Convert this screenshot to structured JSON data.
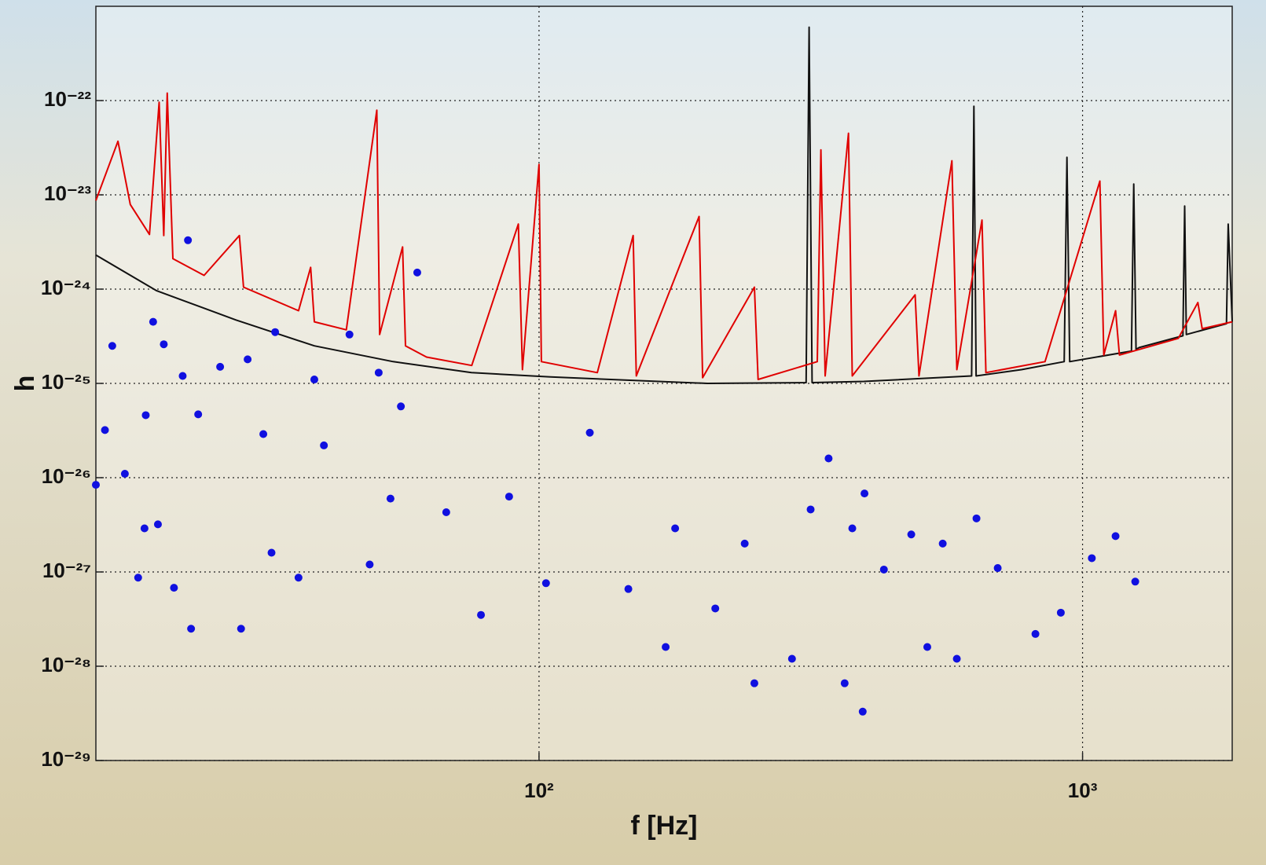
{
  "chart_data": {
    "type": "line",
    "xlabel": "f [Hz]",
    "ylabel": "h",
    "xscale": "log",
    "yscale": "log",
    "grid": true,
    "xlim": [
      15.3,
      1885
    ],
    "ylim": [
      1e-29,
      1e-21
    ],
    "xticks": [
      {
        "value": 100,
        "label": "10²"
      },
      {
        "value": 1000,
        "label": "10³"
      }
    ],
    "yticks": [
      {
        "value": 1e-29,
        "label": "10⁻²⁹"
      },
      {
        "value": 1e-28,
        "label": "10⁻²⁸"
      },
      {
        "value": 1e-27,
        "label": "10⁻²⁷"
      },
      {
        "value": 1e-26,
        "label": "10⁻²⁶"
      },
      {
        "value": 1e-25,
        "label": "10⁻²⁵"
      },
      {
        "value": 1e-24,
        "label": "10⁻²⁴"
      },
      {
        "value": 1e-23,
        "label": "10⁻²³"
      },
      {
        "value": 1e-22,
        "label": "10⁻²²"
      }
    ],
    "series": [
      {
        "type": "line",
        "color": "#111111",
        "x": [
          15.3,
          19.8,
          27.7,
          38.6,
          53.9,
          75.1,
          105,
          204,
          310,
          314,
          318,
          396,
          625,
          631,
          637,
          772,
          925,
          936,
          947,
          1230,
          1242,
          1254,
          1271,
          1530,
          1541,
          1552,
          1840,
          1853,
          1885
        ],
        "values": [
          2.3e-24,
          9.6e-25,
          4.7e-25,
          2.5e-25,
          1.7e-25,
          1.3e-25,
          1.17e-25,
          1e-25,
          1.02e-25,
          6e-22,
          1.02e-25,
          1.05e-25,
          1.2e-25,
          8.7e-23,
          1.2e-25,
          1.4e-25,
          1.7e-25,
          2.5e-23,
          1.7e-25,
          2.2e-25,
          1.3e-23,
          2.3e-25,
          2.4e-25,
          3.2e-25,
          7.6e-24,
          3.3e-25,
          4.3e-25,
          4.9e-24,
          4.5e-25
        ]
      },
      {
        "type": "line",
        "color": "#e00000",
        "x": [
          15.3,
          16.8,
          17.7,
          19.2,
          20.0,
          20.4,
          20.7,
          21.2,
          24.2,
          28.1,
          28.6,
          36.1,
          38.0,
          38.6,
          44.2,
          50.3,
          50.9,
          56.1,
          56.8,
          62.1,
          75.2,
          91.6,
          93.2,
          100,
          101,
          128,
          149,
          151,
          197,
          200,
          249,
          253,
          325,
          330,
          336,
          371,
          377,
          492,
          500,
          575,
          587,
          653,
          664,
          853,
          1076,
          1094,
          1150,
          1169,
          1500,
          1630,
          1660,
          1885
        ],
        "values": [
          8.7e-24,
          3.7e-23,
          7.9e-24,
          3.8e-24,
          9.6e-23,
          3.7e-24,
          1.2e-22,
          2.1e-24,
          1.4e-24,
          3.7e-24,
          1.05e-24,
          5.9e-25,
          1.7e-24,
          4.5e-25,
          3.7e-25,
          7.9e-23,
          3.3e-25,
          2.8e-24,
          2.5e-25,
          1.9e-25,
          1.55e-25,
          4.9e-24,
          1.4e-25,
          2.1e-23,
          1.7e-25,
          1.3e-25,
          3.7e-24,
          1.2e-25,
          5.9e-24,
          1.15e-25,
          1.05e-24,
          1.1e-25,
          1.7e-25,
          3e-23,
          1.2e-25,
          4.5e-23,
          1.2e-25,
          8.7e-25,
          1.2e-25,
          2.3e-23,
          1.4e-25,
          5.4e-24,
          1.3e-25,
          1.7e-25,
          1.4e-23,
          2e-25,
          5.9e-25,
          2e-25,
          3e-25,
          7.2e-25,
          3.8e-25,
          4.5e-25
        ]
      },
      {
        "type": "scatter",
        "color": "#1010e0",
        "x": [
          15.3,
          15.9,
          16.4,
          17.3,
          18.3,
          18.8,
          18.9,
          19.5,
          19.9,
          20.4,
          21.3,
          22.1,
          22.6,
          22.9,
          23.6,
          25.9,
          28.3,
          29.1,
          31.1,
          32.2,
          32.7,
          36.1,
          38.6,
          40.2,
          44.8,
          48.8,
          50.7,
          53.3,
          55.7,
          59.7,
          67.5,
          78.2,
          88.1,
          103,
          124,
          146,
          171,
          178,
          211,
          239,
          249,
          292,
          316,
          341,
          365,
          377,
          394,
          397,
          431,
          484,
          518,
          553,
          587,
          638,
          698,
          819,
          912,
          1040,
          1150,
          1250
        ],
        "values": [
          8.4e-27,
          3.2e-26,
          2.5e-25,
          1.1e-26,
          8.7e-28,
          2.9e-27,
          4.6e-26,
          4.5e-25,
          3.2e-27,
          2.6e-25,
          6.8e-28,
          1.2e-25,
          3.3e-24,
          2.5e-28,
          4.7e-26,
          1.5e-25,
          2.5e-28,
          1.8e-25,
          2.9e-26,
          1.6e-27,
          3.5e-25,
          8.7e-28,
          1.1e-25,
          2.2e-26,
          3.3e-25,
          1.2e-27,
          1.3e-25,
          6e-27,
          5.7e-26,
          1.5e-24,
          4.3e-27,
          3.5e-28,
          6.3e-27,
          7.6e-28,
          3e-26,
          6.6e-28,
          1.6e-28,
          2.9e-27,
          4.1e-28,
          2e-27,
          6.6e-29,
          1.2e-28,
          4.6e-27,
          1.6e-26,
          6.6e-29,
          2.9e-27,
          3.3e-29,
          6.8e-27,
          1.06e-27,
          2.5e-27,
          1.6e-28,
          2e-27,
          1.2e-28,
          3.7e-27,
          1.1e-27,
          2.2e-28,
          3.7e-28,
          1.4e-27,
          2.4e-27,
          7.9e-28
        ]
      }
    ]
  }
}
